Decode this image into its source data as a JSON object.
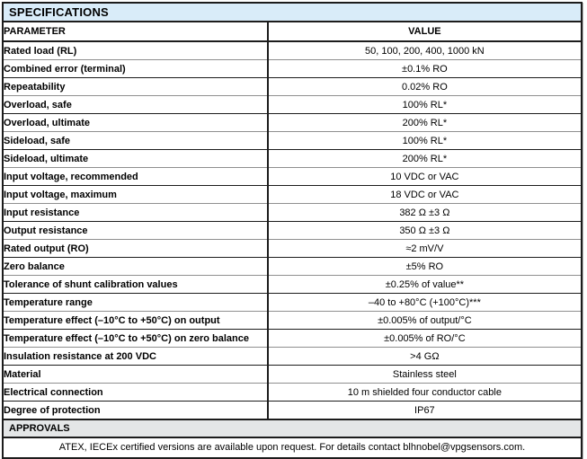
{
  "page": {
    "section_title": "SPECIFICATIONS",
    "approvals_title": "APPROVALS",
    "footer_note": "ATEX, IECEx certified versions are available upon request. For details contact blhnobel@vpgsensors.com.",
    "colors": {
      "section_header_bg": "#d9ecf9",
      "approvals_bg": "#e4e6e7",
      "border_dark": "#1c1c1c",
      "border_light": "#8f8f8f"
    }
  },
  "table": {
    "columns": [
      "PARAMETER",
      "VALUE"
    ],
    "rows": [
      {
        "parameter": "Rated load (RL)",
        "value": "50, 100, 200, 400, 1000 kN"
      },
      {
        "parameter": "Combined error (terminal)",
        "value": "±0.1% RO"
      },
      {
        "parameter": "Repeatability",
        "value": "0.02% RO"
      },
      {
        "parameter": "Overload, safe",
        "value": "100% RL*"
      },
      {
        "parameter": "Overload, ultimate",
        "value": "200% RL*"
      },
      {
        "parameter": "Sideload, safe",
        "value": "100% RL*"
      },
      {
        "parameter": "Sideload, ultimate",
        "value": "200% RL*"
      },
      {
        "parameter": "Input voltage, recommended",
        "value": "10 VDC or VAC"
      },
      {
        "parameter": "Input voltage, maximum",
        "value": "18 VDC or VAC"
      },
      {
        "parameter": "Input resistance",
        "value": "382 Ω ±3 Ω"
      },
      {
        "parameter": "Output resistance",
        "value": "350 Ω ±3 Ω"
      },
      {
        "parameter": "Rated output (RO)",
        "value": "≈2 mV/V"
      },
      {
        "parameter": "Zero balance",
        "value": "±5% RO"
      },
      {
        "parameter": "Tolerance of shunt calibration values",
        "value": "±0.25% of value**"
      },
      {
        "parameter": "Temperature range",
        "value": "–40 to +80°C (+100°C)***"
      },
      {
        "parameter": "Temperature effect (–10°C to +50°C) on output",
        "value": "±0.005% of output/°C"
      },
      {
        "parameter": "Temperature effect (–10°C to +50°C) on zero balance",
        "value": "±0.005% of RO/°C"
      },
      {
        "parameter": "Insulation resistance at 200 VDC",
        "value": ">4 GΩ"
      },
      {
        "parameter": "Material",
        "value": "Stainless steel"
      },
      {
        "parameter": "Electrical connection",
        "value": "10 m shielded four conductor cable"
      },
      {
        "parameter": "Degree of protection",
        "value": "IP67"
      }
    ]
  }
}
